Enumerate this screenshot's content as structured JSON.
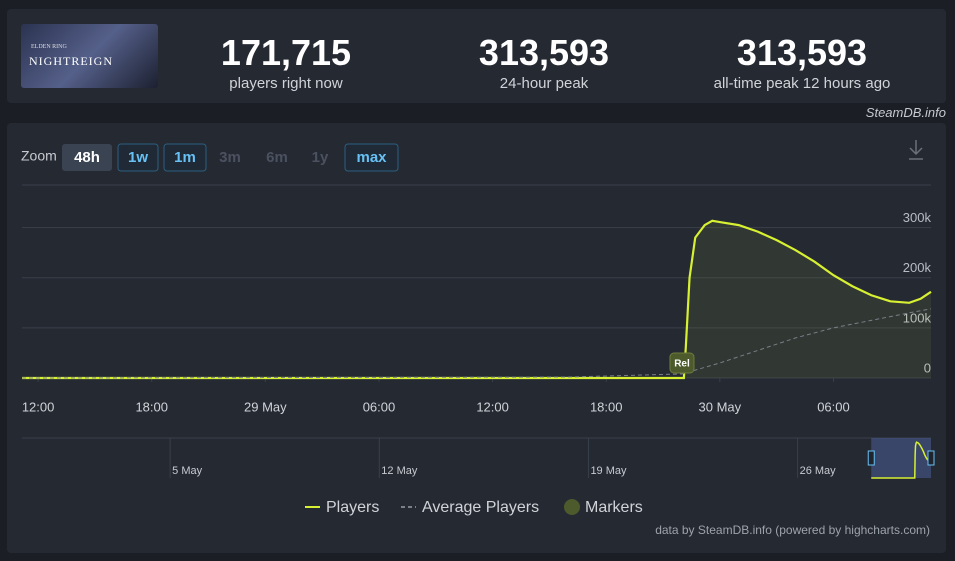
{
  "header": {
    "logo_small": "ELDEN RING",
    "logo": "NIGHTREIGN",
    "stats": [
      {
        "value": "171,715",
        "label": "players right now"
      },
      {
        "value": "313,593",
        "label": "24-hour peak"
      },
      {
        "value": "313,593",
        "label": "all-time peak 12 hours ago"
      }
    ],
    "source": "SteamDB.info"
  },
  "zoom": {
    "label": "Zoom",
    "buttons": [
      "48h",
      "1w",
      "1m",
      "3m",
      "6m",
      "1y",
      "max"
    ]
  },
  "chart_data": {
    "type": "line",
    "xlim": [
      11.15,
      59.15
    ],
    "xticks": [
      {
        "value": 12,
        "label": "12:00"
      },
      {
        "value": 18,
        "label": "18:00"
      },
      {
        "value": 24,
        "label": "29 May"
      },
      {
        "value": 30,
        "label": "06:00"
      },
      {
        "value": 36,
        "label": "12:00"
      },
      {
        "value": 42,
        "label": "18:00"
      },
      {
        "value": 48,
        "label": "30 May"
      },
      {
        "value": 54,
        "label": "06:00"
      }
    ],
    "ylim": [
      0,
      385000
    ],
    "yticks": [
      {
        "value": 0,
        "label": "0"
      },
      {
        "value": 100000,
        "label": "100k"
      },
      {
        "value": 200000,
        "label": "200k"
      },
      {
        "value": 300000,
        "label": "300k"
      }
    ],
    "grid": true,
    "series": [
      {
        "name": "Players",
        "color": "#d7f032",
        "x": [
          11.15,
          45.9,
          46.1,
          46.2,
          46.4,
          46.7,
          47.2,
          47.6,
          48,
          49,
          50,
          51,
          52,
          53,
          54,
          55,
          56,
          57,
          58,
          58.6,
          59.15
        ],
        "values": [
          0,
          0,
          0,
          60000,
          200000,
          280000,
          305000,
          313593,
          311000,
          305000,
          292000,
          275000,
          255000,
          232000,
          205000,
          183000,
          165000,
          153000,
          150000,
          158000,
          172000
        ]
      },
      {
        "name": "Average Players",
        "color": "#7a7f88",
        "x": [
          11.15,
          40,
          46,
          48,
          50,
          52,
          54,
          56,
          58,
          59.15
        ],
        "values": [
          0,
          2000,
          8000,
          30000,
          55000,
          80000,
          100000,
          115000,
          130000,
          138000
        ]
      }
    ],
    "markers": {
      "name": "Markers",
      "color": "#4c5a2c",
      "items": [
        {
          "x": 46,
          "label": "Rel"
        }
      ]
    },
    "navigator": {
      "xlim": [
        -671,
        59.15
      ],
      "xticks": [
        {
          "value": -552,
          "label": "5 May"
        },
        {
          "value": -384,
          "label": "12 May"
        },
        {
          "value": -216,
          "label": "19 May"
        },
        {
          "value": -48,
          "label": "26 May"
        }
      ]
    },
    "credit": "data by SteamDB.info (powered by highcharts.com)"
  }
}
